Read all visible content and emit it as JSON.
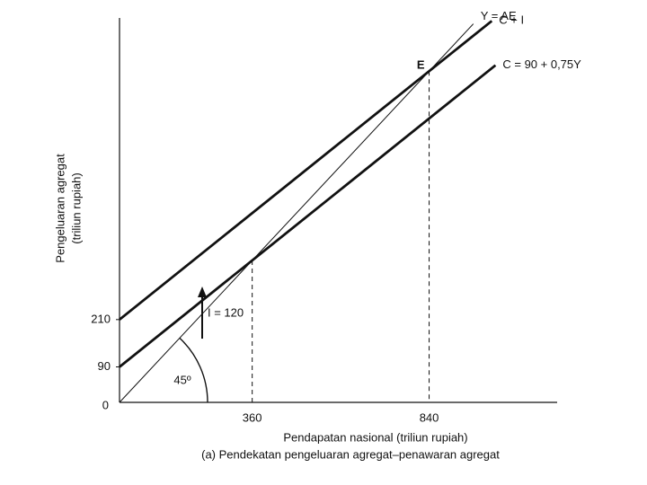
{
  "chart_data": {
    "type": "line",
    "y_label": [
      "Pengeluaran agregat",
      "(triliun rupiah)"
    ],
    "x_label": "Pendapatan nasional (triliun rupiah)",
    "caption": "(a) Pendekatan pengeluaran agregat–penawaran agregat",
    "origin_label": "0",
    "xlim": [
      0,
      1180
    ],
    "ylim": [
      0,
      975
    ],
    "xticks": [
      360,
      840
    ],
    "yticks": [
      90,
      210
    ],
    "series": [
      {
        "name": "Y = AE",
        "color": "#111111",
        "x": [
          0,
          960
        ],
        "values": [
          0,
          960
        ]
      },
      {
        "name": "C + I",
        "color": "#111111",
        "x": [
          0,
          1010
        ],
        "values": [
          210,
          967.5
        ]
      },
      {
        "name": "C = 90 + 0,75Y",
        "color": "#111111",
        "x": [
          0,
          1020
        ],
        "values": [
          90,
          855
        ]
      }
    ],
    "annotations": [
      "E",
      "I = 120",
      "45º"
    ]
  }
}
